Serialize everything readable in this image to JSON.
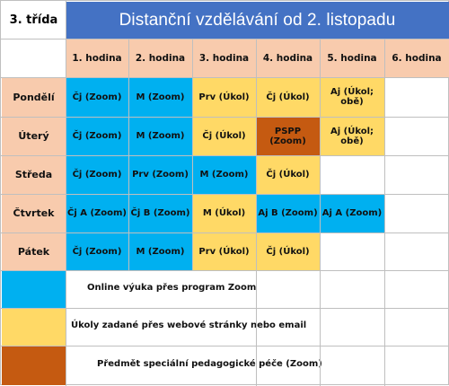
{
  "class_label": "3. třída",
  "title": "Distanční vzdělávání  od 2. listopadu",
  "hours": [
    "1. hodina",
    "2. hodina",
    "3. hodina",
    "4. hodina",
    "5. hodina",
    "6. hodina"
  ],
  "rows": [
    {
      "day": "Pondělí",
      "cells": [
        {
          "text": "Čj (Zoom)",
          "type": "zoom"
        },
        {
          "text": "M (Zoom)",
          "type": "zoom"
        },
        {
          "text": "Prv (Úkol)",
          "type": "ukol"
        },
        {
          "text": "Čj (Úkol)",
          "type": "ukol"
        },
        {
          "text": "Aj (Úkol; obě)",
          "type": "ukol"
        },
        {
          "text": "",
          "type": "empty"
        }
      ]
    },
    {
      "day": "Úterý",
      "cells": [
        {
          "text": "Čj (Zoom)",
          "type": "zoom"
        },
        {
          "text": "M (Zoom)",
          "type": "zoom"
        },
        {
          "text": "Čj (Úkol)",
          "type": "ukol"
        },
        {
          "text": "PSPP (Zoom)",
          "type": "pspp"
        },
        {
          "text": "Aj (Úkol; obě)",
          "type": "ukol"
        },
        {
          "text": "",
          "type": "empty"
        }
      ]
    },
    {
      "day": "Středa",
      "cells": [
        {
          "text": "Čj (Zoom)",
          "type": "zoom"
        },
        {
          "text": "Prv (Zoom)",
          "type": "zoom"
        },
        {
          "text": "M (Zoom)",
          "type": "zoom"
        },
        {
          "text": "Čj (Úkol)",
          "type": "ukol"
        },
        {
          "text": "",
          "type": "empty"
        },
        {
          "text": "",
          "type": "empty"
        }
      ]
    },
    {
      "day": "Čtvrtek",
      "cells": [
        {
          "text": "Čj A (Zoom)",
          "type": "zoom"
        },
        {
          "text": "Čj B (Zoom)",
          "type": "zoom"
        },
        {
          "text": "M (Úkol)",
          "type": "ukol"
        },
        {
          "text": "Aj B (Zoom)",
          "type": "zoom"
        },
        {
          "text": "Aj A (Zoom)",
          "type": "zoom"
        },
        {
          "text": "",
          "type": "empty"
        }
      ]
    },
    {
      "day": "Pátek",
      "cells": [
        {
          "text": "Čj (Zoom)",
          "type": "zoom"
        },
        {
          "text": "M (Zoom)",
          "type": "zoom"
        },
        {
          "text": "Prv (Úkol)",
          "type": "ukol"
        },
        {
          "text": "Čj (Úkol)",
          "type": "ukol"
        },
        {
          "text": "",
          "type": "empty"
        },
        {
          "text": "",
          "type": "empty"
        }
      ]
    }
  ],
  "legend": [
    {
      "type": "zoom",
      "text": "Online výuka přes program Zoom"
    },
    {
      "type": "ukol",
      "text": "Úkoly zadané přes webové stránky nebo email"
    },
    {
      "type": "pspp",
      "text": "Předmět speciální pedagogické péče (Zoom)"
    }
  ],
  "colors": {
    "zoom": "#00b0f0",
    "ukol": "#ffd966",
    "pspp": "#c55a11",
    "header_bg": "#f8cbad",
    "title_bg": "#4472c4"
  }
}
